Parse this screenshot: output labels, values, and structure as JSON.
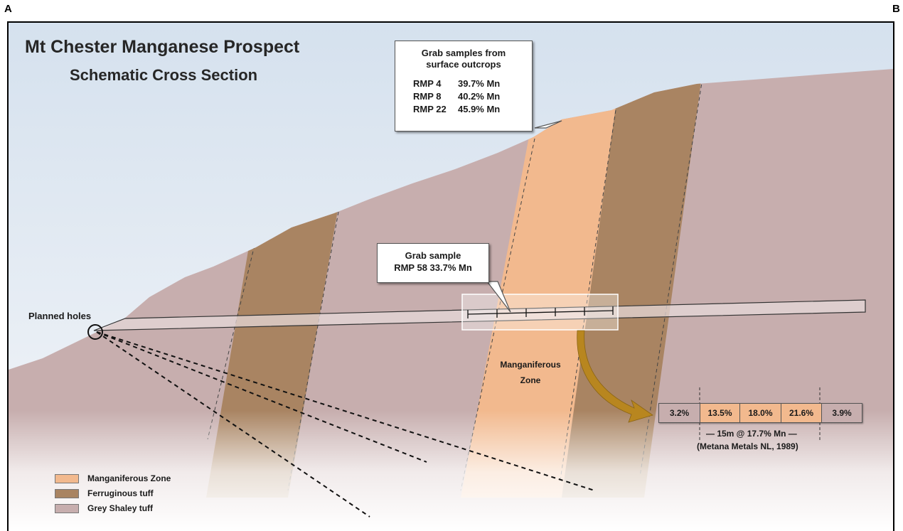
{
  "corners": {
    "left": "A",
    "right": "B"
  },
  "title": "Mt Chester Manganese Prospect",
  "subtitle": "Schematic Cross Section",
  "callout_surface": {
    "heading_line1": "Grab samples from",
    "heading_line2": "surface outcrops",
    "samples": [
      {
        "id": "RMP 4",
        "grade": "39.7% Mn"
      },
      {
        "id": "RMP 8",
        "grade": "40.2% Mn"
      },
      {
        "id": "RMP 22",
        "grade": "45.9% Mn"
      }
    ]
  },
  "callout_grab": {
    "line1": "Grab sample",
    "line2": "RMP 58  33.7% Mn"
  },
  "planned_holes_label": "Planned holes",
  "zone_label": {
    "line1": "Manganiferous",
    "line2": "Zone"
  },
  "assay": {
    "cells": [
      {
        "value": "3.2%",
        "unit": "grey"
      },
      {
        "value": "13.5%",
        "unit": "mn"
      },
      {
        "value": "18.0%",
        "unit": "mn"
      },
      {
        "value": "21.6%",
        "unit": "mn"
      },
      {
        "value": "3.9%",
        "unit": "grey"
      }
    ],
    "summary": "— 15m @ 17.7% Mn —",
    "source": "(Metana Metals NL, 1989)"
  },
  "legend": [
    {
      "label": "Manganiferous Zone",
      "color": "#f2b98e"
    },
    {
      "label": "Ferruginous tuff",
      "color": "#a98462"
    },
    {
      "label": "Grey Shaley tuff",
      "color": "#c7aeae"
    }
  ],
  "colors": {
    "sky_top": "#d7e2ef",
    "sky_bottom": "#f2f5f9",
    "grey_tuff": "#c7aeae",
    "ferruginous": "#a98462",
    "manganiferous": "#f2b98e",
    "arrow": "#b8861f"
  }
}
